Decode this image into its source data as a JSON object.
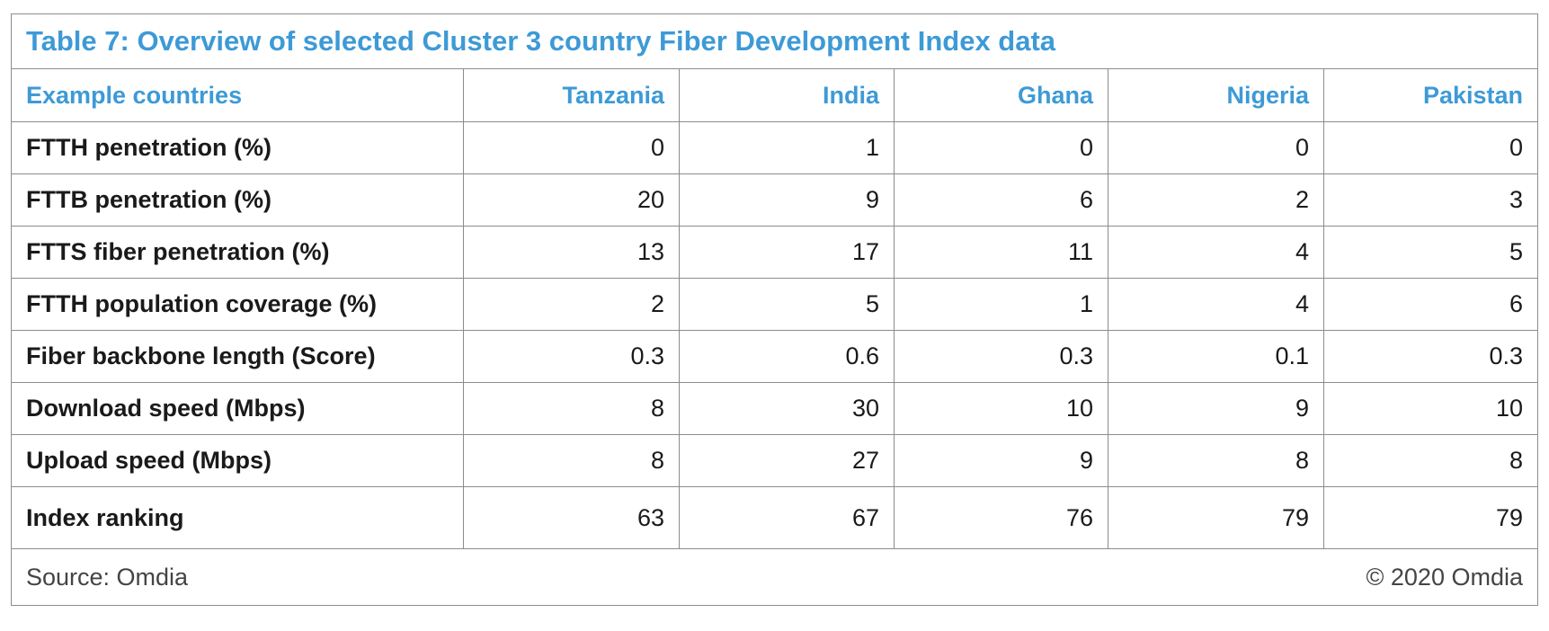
{
  "title": "Table 7: Overview of selected Cluster 3 country Fiber Development Index data",
  "header": {
    "label": "Example countries",
    "columns": [
      "Tanzania",
      "India",
      "Ghana",
      "Nigeria",
      "Pakistan"
    ]
  },
  "rows": [
    {
      "label": "FTTH penetration (%)",
      "values": [
        0,
        1,
        0,
        0,
        0
      ]
    },
    {
      "label": "FTTB penetration (%)",
      "values": [
        20,
        9,
        6,
        2,
        3
      ]
    },
    {
      "label": "FTTS fiber penetration (%)",
      "values": [
        13,
        17,
        11,
        4,
        5
      ]
    },
    {
      "label": "FTTH population coverage (%)",
      "values": [
        2,
        5,
        1,
        4,
        6
      ]
    },
    {
      "label": "Fiber backbone length (Score)",
      "values": [
        0.3,
        0.6,
        0.3,
        0.1,
        0.3
      ]
    },
    {
      "label": "Download speed (Mbps)",
      "values": [
        8,
        30,
        10,
        9,
        10
      ]
    },
    {
      "label": "Upload speed (Mbps)",
      "values": [
        8,
        27,
        9,
        8,
        8
      ]
    },
    {
      "label": "Index ranking",
      "values": [
        63,
        67,
        76,
        79,
        79
      ]
    }
  ],
  "footer": {
    "source": "Source: Omdia",
    "copyright": "© 2020 Omdia"
  }
}
